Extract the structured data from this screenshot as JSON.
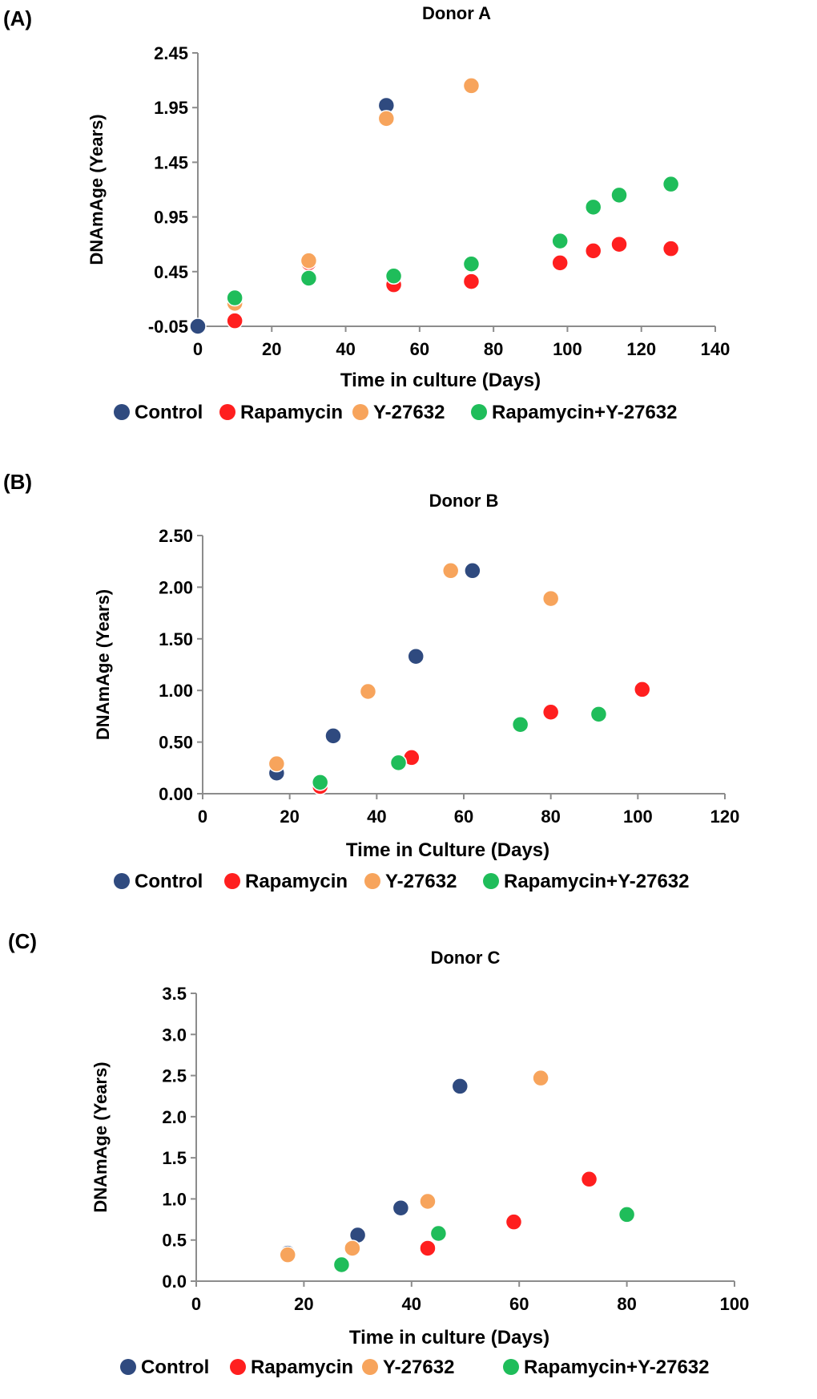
{
  "chart_data": [
    {
      "type": "scatter",
      "panel_label": "(A)",
      "title": "Donor A",
      "xlabel": "Time in culture (Days)",
      "ylabel": "DNAmAge (Years)",
      "xlim": [
        0,
        140
      ],
      "ylim": [
        -0.05,
        2.45
      ],
      "x_ticks": [
        "0",
        "20",
        "40",
        "60",
        "80",
        "100",
        "120",
        "140"
      ],
      "y_ticks": [
        "-0.05",
        "0.45",
        "0.95",
        "1.45",
        "1.95",
        "2.45"
      ],
      "grid": false,
      "legend_position": "bottom",
      "series": [
        {
          "name": "Control",
          "color": "#2f4a7f",
          "points": [
            [
              0,
              -0.05
            ],
            [
              30,
              0.56
            ],
            [
              51,
              1.97
            ]
          ]
        },
        {
          "name": "Rapamycin",
          "color": "#ff1f1f",
          "points": [
            [
              10,
              0.0
            ],
            [
              30,
              0.53
            ],
            [
              53,
              0.33
            ],
            [
              74,
              0.36
            ],
            [
              98,
              0.53
            ],
            [
              107,
              0.64
            ],
            [
              114,
              0.7
            ],
            [
              128,
              0.66
            ]
          ]
        },
        {
          "name": "Y-27632",
          "color": "#f7a45c",
          "points": [
            [
              10,
              0.16
            ],
            [
              30,
              0.55
            ],
            [
              51,
              1.85
            ],
            [
              74,
              2.15
            ]
          ]
        },
        {
          "name": "Rapamycin+Y-27632",
          "color": "#1fbd5a",
          "points": [
            [
              10,
              0.21
            ],
            [
              30,
              0.39
            ],
            [
              53,
              0.41
            ],
            [
              74,
              0.52
            ],
            [
              98,
              0.73
            ],
            [
              107,
              1.04
            ],
            [
              114,
              1.15
            ],
            [
              128,
              1.25
            ]
          ]
        }
      ]
    },
    {
      "type": "scatter",
      "panel_label": "(B)",
      "title": "Donor B",
      "xlabel": "Time in Culture (Days)",
      "ylabel": "DNAmAge (Years)",
      "xlim": [
        0,
        120
      ],
      "ylim": [
        0,
        2.5
      ],
      "x_ticks": [
        "0",
        "20",
        "40",
        "60",
        "80",
        "100",
        "120"
      ],
      "y_ticks": [
        "0.00",
        "0.50",
        "1.00",
        "1.50",
        "2.00",
        "2.50"
      ],
      "grid": false,
      "legend_position": "bottom",
      "series": [
        {
          "name": "Control",
          "color": "#2f4a7f",
          "points": [
            [
              17,
              0.2
            ],
            [
              30,
              0.56
            ],
            [
              49,
              1.33
            ],
            [
              62,
              2.16
            ]
          ]
        },
        {
          "name": "Rapamycin",
          "color": "#ff1f1f",
          "points": [
            [
              27,
              0.07
            ],
            [
              48,
              0.35
            ],
            [
              80,
              0.79
            ],
            [
              101,
              1.01
            ]
          ]
        },
        {
          "name": "Y-27632",
          "color": "#f7a45c",
          "points": [
            [
              17,
              0.29
            ],
            [
              38,
              0.99
            ],
            [
              57,
              2.16
            ],
            [
              80,
              1.89
            ]
          ]
        },
        {
          "name": "Rapamycin+Y-27632",
          "color": "#1fbd5a",
          "points": [
            [
              27,
              0.11
            ],
            [
              45,
              0.3
            ],
            [
              73,
              0.67
            ],
            [
              91,
              0.77
            ]
          ]
        }
      ]
    },
    {
      "type": "scatter",
      "panel_label": "(C)",
      "title": "Donor C",
      "xlabel": "Time in culture (Days)",
      "ylabel": "DNAmAge (Years)",
      "xlim": [
        0,
        100
      ],
      "ylim": [
        0,
        3.5
      ],
      "x_ticks": [
        "0",
        "20",
        "40",
        "60",
        "80",
        "100"
      ],
      "y_ticks": [
        "0.0",
        "0.5",
        "1.0",
        "1.5",
        "2.0",
        "2.5",
        "3.0",
        "3.5"
      ],
      "grid": false,
      "legend_position": "bottom",
      "series": [
        {
          "name": "Control",
          "color": "#2f4a7f",
          "points": [
            [
              17,
              0.34
            ],
            [
              30,
              0.56
            ],
            [
              38,
              0.89
            ],
            [
              49,
              2.37
            ]
          ]
        },
        {
          "name": "Rapamycin",
          "color": "#ff1f1f",
          "points": [
            [
              43,
              0.4
            ],
            [
              59,
              0.72
            ],
            [
              73,
              1.24
            ]
          ]
        },
        {
          "name": "Y-27632",
          "color": "#f7a45c",
          "points": [
            [
              17,
              0.32
            ],
            [
              29,
              0.4
            ],
            [
              43,
              0.97
            ],
            [
              64,
              2.47
            ]
          ]
        },
        {
          "name": "Rapamycin+Y-27632",
          "color": "#1fbd5a",
          "points": [
            [
              27,
              0.2
            ],
            [
              45,
              0.58
            ],
            [
              80,
              0.81
            ]
          ]
        }
      ]
    }
  ]
}
